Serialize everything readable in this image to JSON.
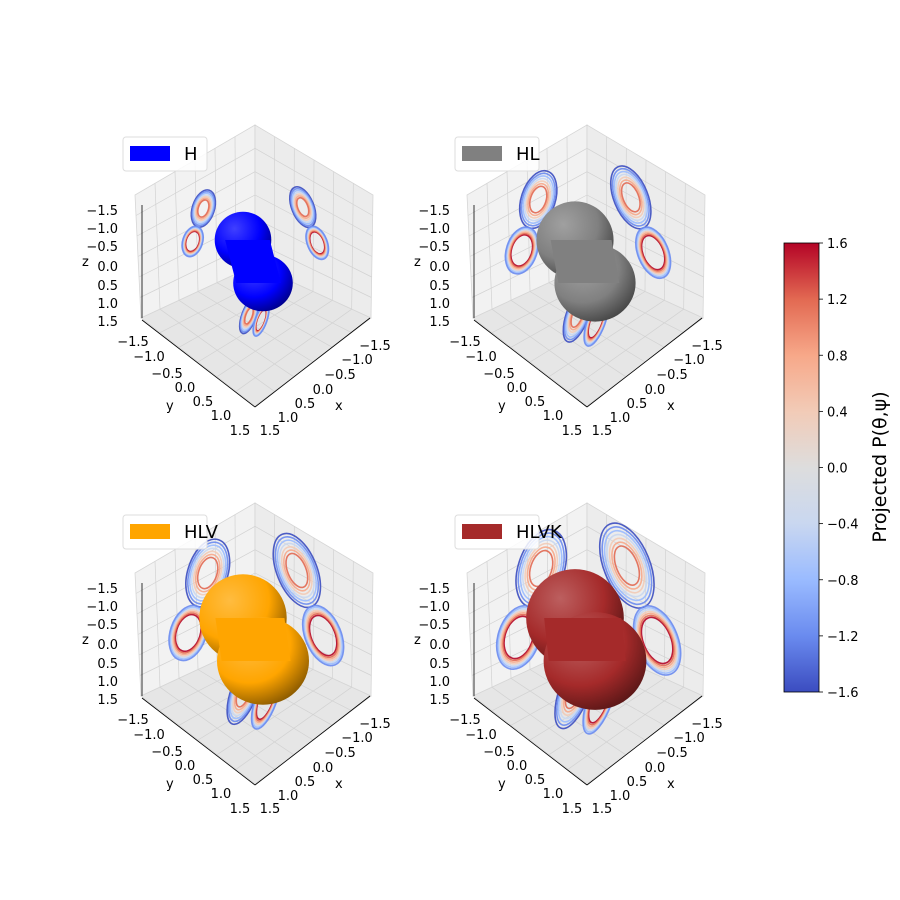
{
  "chart_data": {
    "type": "surface3d",
    "subplots": [
      {
        "legend": "H",
        "color": "#0000ff",
        "lobe_scale": 0.55
      },
      {
        "legend": "HL",
        "color": "#808080",
        "lobe_scale": 0.85
      },
      {
        "legend": "HLV",
        "color": "#ffa500",
        "lobe_scale": 1.0
      },
      {
        "legend": "HLVK",
        "color": "#a52a2a",
        "lobe_scale": 1.15
      }
    ],
    "axes": {
      "xlabel": "x",
      "ylabel": "y",
      "zlabel": "z",
      "xlim": [
        -1.5,
        1.5
      ],
      "ylim": [
        -1.5,
        1.5
      ],
      "zlim": [
        -1.5,
        1.5
      ],
      "ticks": [
        "−1.5",
        "−1.0",
        "−0.5",
        "0.0",
        "0.5",
        "1.0",
        "1.5"
      ],
      "view": {
        "elev": 35,
        "azim": 45
      }
    },
    "contour_levels": [
      -1.6,
      -1.2,
      -0.8,
      -0.4,
      0.4,
      0.8,
      1.2
    ],
    "colorbar": {
      "label": "Projected P(θ,ψ)",
      "min": -1.6,
      "max": 1.6,
      "ticks": [
        "1.6",
        "1.2",
        "0.8",
        "0.4",
        "0.0",
        "−0.4",
        "−0.8",
        "−1.2",
        "−1.6"
      ],
      "colormap": "coolwarm",
      "colors": [
        "#3b4cc0",
        "#6a8bef",
        "#9abbff",
        "#c9d7f0",
        "#dddddd",
        "#f2cbb7",
        "#f7a889",
        "#e26952",
        "#b40426"
      ]
    }
  }
}
